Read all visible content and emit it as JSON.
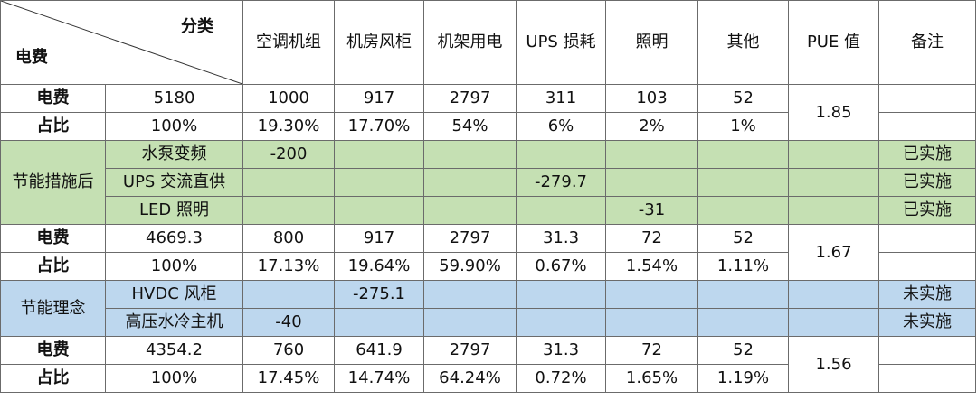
{
  "header": {
    "corner_top": "分类",
    "corner_bottom": "电费",
    "columns": [
      "空调机组",
      "机房风柜",
      "机架用电",
      "UPS 损耗",
      "照明",
      "其他",
      "PUE 值",
      "备注"
    ]
  },
  "section1": {
    "fee": {
      "label": "电费",
      "values": [
        "5180",
        "1000",
        "917",
        "2797",
        "311",
        "103",
        "52"
      ]
    },
    "ratio": {
      "label": "占比",
      "values": [
        "100%",
        "19.30%",
        "17.70%",
        "54%",
        "6%",
        "2%",
        "1%"
      ]
    },
    "pue": "1.85"
  },
  "measures": {
    "group_label": "节能措施后",
    "rows": [
      {
        "label": "水泵变频",
        "value": "-200",
        "note": "已实施"
      },
      {
        "label": "UPS 交流直供",
        "value": "-279.7",
        "note": "已实施"
      },
      {
        "label": "LED 照明",
        "value": "-31",
        "note": "已实施"
      }
    ]
  },
  "section2": {
    "fee": {
      "label": "电费",
      "values": [
        "4669.3",
        "800",
        "917",
        "2797",
        "31.3",
        "72",
        "52"
      ]
    },
    "ratio": {
      "label": "占比",
      "values": [
        "100%",
        "17.13%",
        "19.64%",
        "59.90%",
        "0.67%",
        "1.54%",
        "1.11%"
      ]
    },
    "pue": "1.67"
  },
  "concepts": {
    "group_label": "节能理念",
    "rows": [
      {
        "label": "HVDC 风柜",
        "value": "-275.1",
        "note": "未实施"
      },
      {
        "label": "高压水冷主机",
        "value": "-40",
        "note": "未实施"
      }
    ]
  },
  "section3": {
    "fee": {
      "label": "电费",
      "values": [
        "4354.2",
        "760",
        "641.9",
        "2797",
        "31.3",
        "72",
        "52"
      ]
    },
    "ratio": {
      "label": "占比",
      "values": [
        "100%",
        "17.45%",
        "14.74%",
        "64.24%",
        "0.72%",
        "1.65%",
        "1.19%"
      ]
    },
    "pue": "1.56"
  }
}
